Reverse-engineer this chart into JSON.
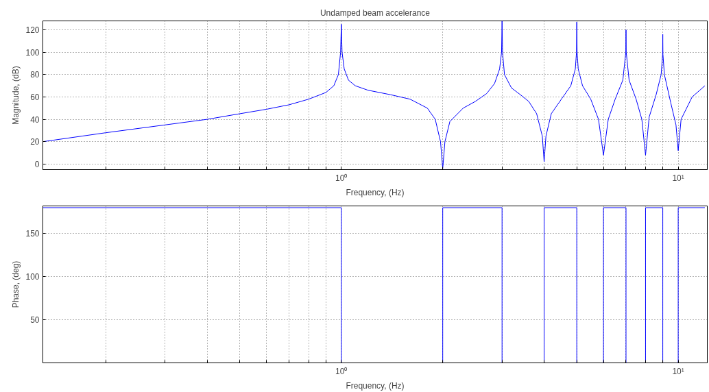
{
  "chart_data": [
    {
      "type": "line",
      "title": "Undamped beam accelerance",
      "xlabel": "Frequency, (Hz)",
      "ylabel": "Magnitude, (dB)",
      "log": "x",
      "grid": true,
      "x": [
        0.13,
        0.2,
        0.3,
        0.4,
        0.5,
        0.6,
        0.7,
        0.8,
        0.9,
        0.95,
        0.98,
        0.995,
        1.0,
        1.005,
        1.02,
        1.05,
        1.1,
        1.2,
        1.4,
        1.6,
        1.8,
        1.9,
        1.97,
        2.0,
        2.03,
        2.1,
        2.3,
        2.5,
        2.7,
        2.85,
        2.95,
        2.99,
        3.0,
        3.01,
        3.05,
        3.2,
        3.4,
        3.6,
        3.8,
        3.95,
        4.0,
        4.05,
        4.2,
        4.5,
        4.8,
        4.95,
        4.99,
        5.0,
        5.01,
        5.05,
        5.2,
        5.5,
        5.8,
        6.0,
        6.2,
        6.5,
        6.85,
        6.99,
        7.0,
        7.01,
        7.15,
        7.5,
        7.8,
        8.0,
        8.2,
        8.6,
        8.9,
        8.99,
        9.0,
        9.01,
        9.1,
        9.5,
        9.85,
        10.0,
        10.2,
        11,
        12
      ],
      "series": [
        {
          "color": "#0000ff",
          "values": [
            20,
            28,
            35,
            40,
            45,
            49,
            53,
            58,
            64,
            70,
            80,
            100,
            125,
            100,
            85,
            75,
            70,
            66,
            62,
            58,
            50,
            40,
            20,
            -4,
            20,
            38,
            50,
            56,
            63,
            72,
            85,
            100,
            128,
            100,
            80,
            68,
            62,
            56,
            45,
            25,
            2,
            25,
            45,
            58,
            70,
            85,
            100,
            127,
            100,
            85,
            70,
            58,
            40,
            8,
            40,
            58,
            75,
            100,
            120,
            100,
            75,
            58,
            40,
            8,
            42,
            62,
            80,
            98,
            116,
            98,
            80,
            55,
            35,
            12,
            40,
            60,
            70
          ]
        }
      ],
      "xlim": [
        0.13,
        12.2
      ],
      "ylim": [
        -5,
        128
      ],
      "yticks": [
        0,
        20,
        40,
        60,
        80,
        100,
        120
      ],
      "xticks": [
        {
          "value": 0.2,
          "label": null
        },
        {
          "value": 0.3,
          "label": null
        },
        {
          "value": 0.4,
          "label": null
        },
        {
          "value": 0.5,
          "label": null
        },
        {
          "value": 0.6,
          "label": null
        },
        {
          "value": 0.7,
          "label": null
        },
        {
          "value": 0.8,
          "label": null
        },
        {
          "value": 0.9,
          "label": null
        },
        {
          "value": 1,
          "label": "10⁰"
        },
        {
          "value": 2,
          "label": null
        },
        {
          "value": 3,
          "label": null
        },
        {
          "value": 4,
          "label": null
        },
        {
          "value": 5,
          "label": null
        },
        {
          "value": 6,
          "label": null
        },
        {
          "value": 7,
          "label": null
        },
        {
          "value": 8,
          "label": null
        },
        {
          "value": 9,
          "label": null
        },
        {
          "value": 10,
          "label": "10¹"
        }
      ]
    },
    {
      "type": "line",
      "xlabel": "Frequency, (Hz)",
      "ylabel": "Phase, (deg)",
      "log": "x",
      "grid": true,
      "x": [
        0.13,
        1,
        1,
        2,
        2,
        3,
        3,
        4,
        4,
        5,
        5,
        6,
        6,
        7,
        7,
        8,
        8,
        9,
        9,
        10,
        10,
        12
      ],
      "series": [
        {
          "color": "#0000ff",
          "values": [
            180,
            180,
            0,
            0,
            180,
            180,
            0,
            0,
            180,
            180,
            0,
            0,
            180,
            180,
            0,
            0,
            180,
            180,
            0,
            0,
            180,
            180
          ]
        }
      ],
      "xlim": [
        0.13,
        12.2
      ],
      "ylim": [
        0,
        182
      ],
      "yticks": [
        50,
        100,
        150
      ],
      "xticks": [
        {
          "value": 0.2,
          "label": null
        },
        {
          "value": 0.3,
          "label": null
        },
        {
          "value": 0.4,
          "label": null
        },
        {
          "value": 0.5,
          "label": null
        },
        {
          "value": 0.6,
          "label": null
        },
        {
          "value": 0.7,
          "label": null
        },
        {
          "value": 0.8,
          "label": null
        },
        {
          "value": 0.9,
          "label": null
        },
        {
          "value": 1,
          "label": "10⁰"
        },
        {
          "value": 2,
          "label": null
        },
        {
          "value": 3,
          "label": null
        },
        {
          "value": 4,
          "label": null
        },
        {
          "value": 5,
          "label": null
        },
        {
          "value": 6,
          "label": null
        },
        {
          "value": 7,
          "label": null
        },
        {
          "value": 8,
          "label": null
        },
        {
          "value": 9,
          "label": null
        },
        {
          "value": 10,
          "label": "10¹"
        }
      ]
    }
  ]
}
